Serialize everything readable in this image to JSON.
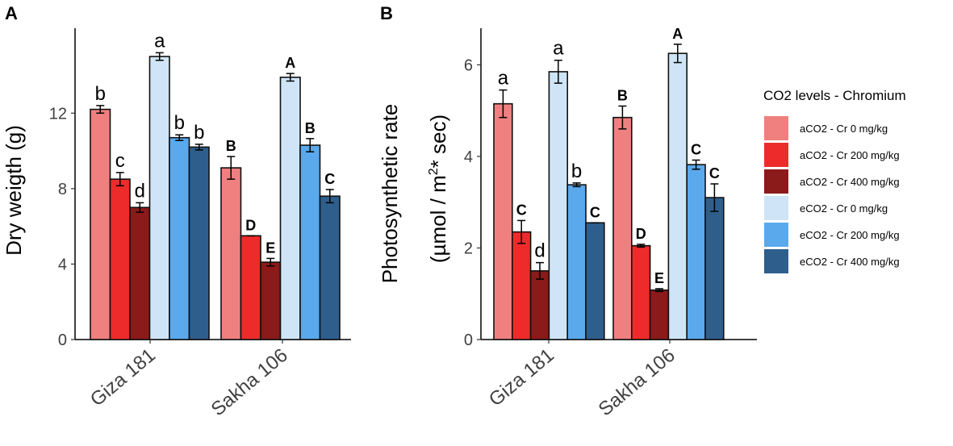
{
  "chart_data": [
    {
      "panel": "A",
      "type": "bar",
      "title": "",
      "xlabel": "",
      "ylabel": "Dry weigth (g)",
      "ylim": [
        0,
        16.5
      ],
      "yticks": [
        "0",
        "4",
        "8",
        "12"
      ],
      "grid": false,
      "categories": [
        "Giza 181",
        "Sakha 106"
      ],
      "series": [
        {
          "name": "aCO2 - Cr 0 mg/kg",
          "values": [
            12.2,
            9.1
          ],
          "errors": [
            0.2,
            0.6
          ],
          "labels": [
            "b",
            "B"
          ]
        },
        {
          "name": "aCO2 - Cr 200 mg/kg",
          "values": [
            8.5,
            5.5
          ],
          "errors": [
            0.35,
            0.0
          ],
          "labels": [
            "c",
            "D"
          ]
        },
        {
          "name": "aCO2 - Cr 400 mg/kg",
          "values": [
            7.0,
            4.1
          ],
          "errors": [
            0.25,
            0.2
          ],
          "labels": [
            "d",
            "E"
          ]
        },
        {
          "name": "eCO2 - Cr 0 mg/kg",
          "values": [
            15.0,
            13.9
          ],
          "errors": [
            0.2,
            0.2
          ],
          "labels": [
            "a",
            "A"
          ]
        },
        {
          "name": "eCO2 - Cr 200 mg/kg",
          "values": [
            10.7,
            10.3
          ],
          "errors": [
            0.15,
            0.35
          ],
          "labels": [
            "b",
            "B"
          ]
        },
        {
          "name": "eCO2 - Cr 400 mg/kg",
          "values": [
            10.2,
            7.6
          ],
          "errors": [
            0.15,
            0.35
          ],
          "labels": [
            "b",
            "C"
          ]
        }
      ]
    },
    {
      "panel": "B",
      "type": "bar",
      "title": "",
      "xlabel": "",
      "ylabel": "Photosynthetic rate",
      "ylabel_line2": "(µmol / m²* sec)",
      "ylim": [
        0,
        6.8
      ],
      "yticks": [
        "0",
        "2",
        "4",
        "6"
      ],
      "grid": false,
      "categories": [
        "Giza 181",
        "Sakha 106"
      ],
      "series": [
        {
          "name": "aCO2 - Cr 0 mg/kg",
          "values": [
            5.15,
            4.85
          ],
          "errors": [
            0.3,
            0.25
          ],
          "labels": [
            "a",
            "B"
          ]
        },
        {
          "name": "aCO2 - Cr 200 mg/kg",
          "values": [
            2.35,
            2.05
          ],
          "errors": [
            0.25,
            0.03
          ],
          "labels": [
            "C",
            "D"
          ]
        },
        {
          "name": "aCO2 - Cr 400 mg/kg",
          "values": [
            1.5,
            1.08
          ],
          "errors": [
            0.18,
            0.03
          ],
          "labels": [
            "d",
            "E"
          ]
        },
        {
          "name": "eCO2 - Cr 0 mg/kg",
          "values": [
            5.85,
            6.25
          ],
          "errors": [
            0.25,
            0.2
          ],
          "labels": [
            "a",
            "A"
          ]
        },
        {
          "name": "eCO2 - Cr 200 mg/kg",
          "values": [
            3.38,
            3.82
          ],
          "errors": [
            0.04,
            0.1
          ],
          "labels": [
            "b",
            "C"
          ]
        },
        {
          "name": "eCO2 - Cr 400 mg/kg",
          "values": [
            2.55,
            3.1
          ],
          "errors": [
            0.0,
            0.3
          ],
          "labels": [
            "C",
            "C"
          ]
        }
      ]
    }
  ],
  "legend": {
    "title": "CO2 levels - Chromium",
    "items": [
      {
        "label": "aCO2 - Cr 0 mg/kg",
        "color": "#f08080"
      },
      {
        "label": "aCO2 - Cr 200 mg/kg",
        "color": "#ee2b2b"
      },
      {
        "label": "aCO2 - Cr 400 mg/kg",
        "color": "#8b1a1a"
      },
      {
        "label": "eCO2 - Cr 0 mg/kg",
        "color": "#cfe5f7"
      },
      {
        "label": "eCO2 - Cr 200 mg/kg",
        "color": "#5aa9ec"
      },
      {
        "label": "eCO2 - Cr 400 mg/kg",
        "color": "#2e5e8c"
      }
    ]
  }
}
